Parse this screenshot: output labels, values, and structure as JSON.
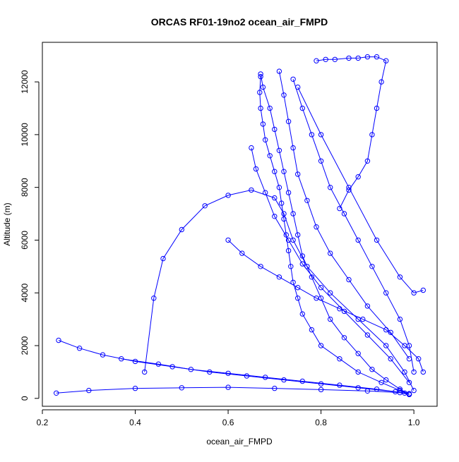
{
  "chart_data": {
    "type": "line",
    "title": "ORCAS RF01-19no2 ocean_air_FMPD",
    "xlabel": "ocean_air_FMPD",
    "ylabel": "Altitude (m)",
    "xlim": [
      0.2,
      1.05
    ],
    "ylim": [
      -300,
      13500
    ],
    "x_ticks": [
      "0.2",
      "0.4",
      "0.6",
      "0.8",
      "1.0"
    ],
    "y_ticks": [
      "0",
      "2000",
      "4000",
      "6000",
      "8000",
      "10000",
      "12000"
    ],
    "grid": false,
    "legend": "none",
    "marker": "open-circle",
    "series_color": "#0000ff",
    "series": [
      {
        "x": [
          0.99,
          0.97,
          0.93,
          0.88,
          0.84,
          0.8,
          0.78,
          0.76,
          0.75,
          0.74,
          0.735,
          0.73,
          0.725,
          0.72,
          0.715,
          0.71,
          0.7,
          0.69,
          0.68,
          0.675,
          0.67,
          0.668,
          0.67
        ],
        "y": [
          150,
          300,
          600,
          1000,
          1500,
          2000,
          2600,
          3200,
          3800,
          4400,
          5000,
          5600,
          6200,
          6800,
          7400,
          8000,
          8600,
          9200,
          9800,
          10400,
          11000,
          11600,
          12200
        ]
      },
      {
        "x": [
          0.67,
          0.675,
          0.69,
          0.7,
          0.71,
          0.72,
          0.73,
          0.74,
          0.75,
          0.76,
          0.78,
          0.8,
          0.82,
          0.85,
          0.88,
          0.91,
          0.94,
          0.97,
          0.99
        ],
        "y": [
          12300,
          11800,
          11000,
          10200,
          9400,
          8600,
          7800,
          7000,
          6200,
          5400,
          4600,
          3800,
          3000,
          2300,
          1700,
          1100,
          700,
          350,
          150
        ]
      },
      {
        "x": [
          0.23,
          0.3,
          0.4,
          0.5,
          0.6,
          0.7,
          0.8,
          0.9,
          0.97,
          0.99
        ],
        "y": [
          200,
          300,
          380,
          400,
          420,
          380,
          330,
          280,
          220,
          180
        ]
      },
      {
        "x": [
          0.235,
          0.28,
          0.33,
          0.4,
          0.48,
          0.56,
          0.64,
          0.72,
          0.8,
          0.88,
          0.96,
          0.99
        ],
        "y": [
          2200,
          1900,
          1650,
          1400,
          1200,
          1000,
          850,
          700,
          550,
          400,
          250,
          150
        ]
      },
      {
        "x": [
          0.42,
          0.44,
          0.46,
          0.5,
          0.55,
          0.6,
          0.65,
          0.7,
          0.72,
          0.74,
          0.77,
          0.82,
          0.88,
          0.94,
          0.98,
          1.0
        ],
        "y": [
          1000,
          3800,
          5300,
          6400,
          7300,
          7700,
          7900,
          7600,
          7000,
          6000,
          5000,
          4000,
          3000,
          2000,
          1000,
          300
        ]
      },
      {
        "x": [
          0.79,
          0.81,
          0.83,
          0.86,
          0.88,
          0.9,
          0.92,
          0.94,
          0.93,
          0.92,
          0.91,
          0.9,
          0.88,
          0.86,
          0.84
        ],
        "y": [
          12800,
          12850,
          12850,
          12900,
          12900,
          12950,
          12950,
          12800,
          12000,
          11000,
          10000,
          9000,
          8400,
          7900,
          7200
        ]
      },
      {
        "x": [
          0.37,
          0.45,
          0.52,
          0.6,
          0.68,
          0.76,
          0.84,
          0.92,
          0.98
        ],
        "y": [
          1500,
          1300,
          1100,
          950,
          800,
          650,
          500,
          350,
          200
        ]
      },
      {
        "x": [
          0.74,
          0.76,
          0.78,
          0.8,
          0.82,
          0.85,
          0.88,
          0.91,
          0.94,
          0.97,
          0.99,
          1.0
        ],
        "y": [
          12100,
          11000,
          10000,
          9000,
          8000,
          7000,
          6000,
          5000,
          4000,
          3000,
          2000,
          1000
        ]
      },
      {
        "x": [
          0.71,
          0.72,
          0.73,
          0.74,
          0.75,
          0.77,
          0.79,
          0.82,
          0.86,
          0.9,
          0.95,
          0.99
        ],
        "y": [
          12400,
          11500,
          10500,
          9500,
          8500,
          7500,
          6500,
          5500,
          4500,
          3500,
          2500,
          1500
        ]
      },
      {
        "x": [
          0.65,
          0.66,
          0.68,
          0.7,
          0.73,
          0.76,
          0.8,
          0.85,
          0.9,
          0.95,
          0.99
        ],
        "y": [
          9500,
          8700,
          7800,
          6900,
          6000,
          5100,
          4200,
          3300,
          2400,
          1500,
          600
        ]
      },
      {
        "x": [
          0.6,
          0.63,
          0.67,
          0.71,
          0.75,
          0.79,
          0.84,
          0.89,
          0.94,
          0.98,
          1.01,
          1.02
        ],
        "y": [
          6000,
          5500,
          5000,
          4600,
          4200,
          3800,
          3400,
          3000,
          2600,
          2000,
          1500,
          1000
        ]
      },
      {
        "x": [
          0.75,
          0.8,
          0.86,
          0.92,
          0.97,
          1.0,
          1.02
        ],
        "y": [
          11800,
          10000,
          8000,
          6000,
          4600,
          4000,
          4100
        ]
      }
    ]
  }
}
